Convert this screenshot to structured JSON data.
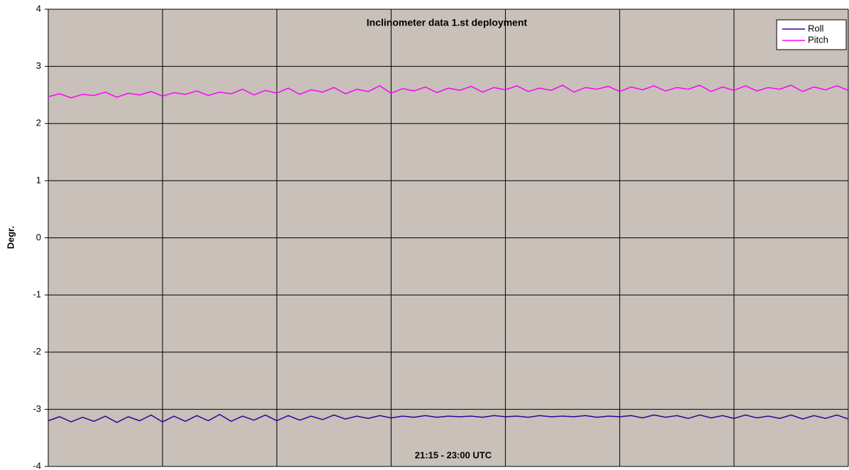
{
  "chart_data": {
    "type": "line",
    "title": "Inclinometer data 1.st deployment",
    "ylabel": "Degr.",
    "xlabel": "21:15 - 23:00 UTC",
    "x": [
      0,
      1,
      2,
      3,
      4,
      5,
      6,
      7,
      8,
      9,
      10,
      11,
      12,
      13,
      14,
      15,
      16,
      17,
      18,
      19,
      20,
      21,
      22,
      23,
      24,
      25,
      26,
      27,
      28,
      29,
      30,
      31,
      32,
      33,
      34,
      35,
      36,
      37,
      38,
      39,
      40,
      41,
      42,
      43,
      44,
      45,
      46,
      47,
      48,
      49,
      50,
      51,
      52,
      53,
      54,
      55,
      56,
      57,
      58,
      59,
      60,
      61,
      62,
      63,
      64,
      65,
      66,
      67,
      68,
      69,
      70
    ],
    "xlim": [
      0,
      70
    ],
    "xticks": [
      0,
      10,
      20,
      30,
      40,
      50,
      60,
      70
    ],
    "ylim": [
      -4,
      4
    ],
    "yticks": [
      -4,
      -3,
      -2,
      -1,
      0,
      1,
      2,
      3,
      4
    ],
    "grid": true,
    "legend": "upper right",
    "background": "#c8c0b9",
    "series": [
      {
        "name": "Roll",
        "color": "#330099",
        "values": [
          -3.2,
          -3.13,
          -3.22,
          -3.14,
          -3.21,
          -3.12,
          -3.23,
          -3.13,
          -3.2,
          -3.1,
          -3.22,
          -3.12,
          -3.21,
          -3.11,
          -3.2,
          -3.09,
          -3.21,
          -3.12,
          -3.19,
          -3.1,
          -3.2,
          -3.11,
          -3.19,
          -3.12,
          -3.18,
          -3.1,
          -3.17,
          -3.12,
          -3.16,
          -3.11,
          -3.15,
          -3.12,
          -3.14,
          -3.11,
          -3.14,
          -3.12,
          -3.13,
          -3.12,
          -3.14,
          -3.11,
          -3.13,
          -3.12,
          -3.14,
          -3.11,
          -3.13,
          -3.12,
          -3.13,
          -3.11,
          -3.14,
          -3.12,
          -3.13,
          -3.11,
          -3.15,
          -3.1,
          -3.14,
          -3.11,
          -3.16,
          -3.1,
          -3.15,
          -3.11,
          -3.16,
          -3.1,
          -3.15,
          -3.12,
          -3.16,
          -3.1,
          -3.17,
          -3.11,
          -3.16,
          -3.1,
          -3.17
        ]
      },
      {
        "name": "Pitch",
        "color": "#ff00ff",
        "values": [
          2.47,
          2.52,
          2.45,
          2.51,
          2.49,
          2.55,
          2.46,
          2.53,
          2.5,
          2.56,
          2.48,
          2.54,
          2.51,
          2.57,
          2.49,
          2.55,
          2.52,
          2.6,
          2.5,
          2.58,
          2.53,
          2.62,
          2.51,
          2.59,
          2.55,
          2.63,
          2.52,
          2.6,
          2.56,
          2.66,
          2.53,
          2.61,
          2.57,
          2.64,
          2.54,
          2.62,
          2.58,
          2.65,
          2.55,
          2.63,
          2.59,
          2.66,
          2.56,
          2.62,
          2.58,
          2.67,
          2.55,
          2.63,
          2.6,
          2.65,
          2.56,
          2.64,
          2.59,
          2.66,
          2.57,
          2.63,
          2.6,
          2.67,
          2.56,
          2.64,
          2.58,
          2.66,
          2.57,
          2.63,
          2.6,
          2.67,
          2.56,
          2.64,
          2.59,
          2.66,
          2.58
        ]
      }
    ]
  }
}
